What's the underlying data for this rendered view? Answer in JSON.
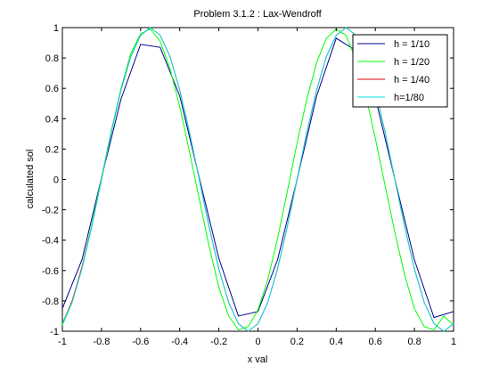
{
  "chart_data": {
    "type": "line",
    "title": "Problem 3.1.2 : Lax-Wendroff",
    "xlabel": "x val",
    "ylabel": "calculated sol",
    "xlim": [
      -1,
      1
    ],
    "ylim": [
      -1,
      1
    ],
    "xticks": [
      "-1",
      "-0.8",
      "-0.6",
      "-0.4",
      "-0.2",
      "0",
      "0.2",
      "0.4",
      "0.6",
      "0.8",
      "1"
    ],
    "yticks": [
      "-1",
      "-0.8",
      "-0.6",
      "-0.4",
      "-0.2",
      "0",
      "0.2",
      "0.4",
      "0.6",
      "0.8",
      "1"
    ],
    "grid": false,
    "legend_position": "top-right",
    "series": [
      {
        "name": "h = 1/10",
        "color": "#00008f",
        "x": [
          -1,
          -0.9,
          -0.8,
          -0.7,
          -0.6,
          -0.5,
          -0.4,
          -0.3,
          -0.2,
          -0.1,
          0,
          0.1,
          0.2,
          0.3,
          0.4,
          0.5,
          0.6,
          0.7,
          0.8,
          0.9,
          1
        ],
        "y": [
          -0.85,
          -0.53,
          0.01,
          0.53,
          0.89,
          0.87,
          0.55,
          0.01,
          -0.52,
          -0.9,
          -0.87,
          -0.53,
          0.0,
          0.55,
          0.93,
          0.85,
          0.54,
          0.0,
          -0.53,
          -0.91,
          -0.87
        ]
      },
      {
        "name": "h = 1/20",
        "color": "#00ff00",
        "x": [
          -1,
          -0.95,
          -0.9,
          -0.85,
          -0.8,
          -0.75,
          -0.7,
          -0.65,
          -0.6,
          -0.55,
          -0.5,
          -0.45,
          -0.4,
          -0.35,
          -0.3,
          -0.25,
          -0.2,
          -0.15,
          -0.1,
          -0.05,
          0,
          0.05,
          0.1,
          0.15,
          0.2,
          0.25,
          0.3,
          0.35,
          0.4,
          0.45,
          0.5,
          0.55,
          0.6,
          0.65,
          0.7,
          0.75,
          0.8,
          0.85,
          0.9,
          0.95,
          1
        ],
        "y": [
          -0.96,
          -0.81,
          -0.58,
          -0.3,
          0.01,
          0.32,
          0.6,
          0.83,
          0.96,
          0.99,
          0.91,
          0.73,
          0.48,
          0.18,
          -0.13,
          -0.44,
          -0.71,
          -0.9,
          -0.99,
          -0.97,
          -0.86,
          -0.66,
          -0.39,
          -0.08,
          0.24,
          0.53,
          0.77,
          0.93,
          0.99,
          0.95,
          0.79,
          0.56,
          0.27,
          -0.04,
          -0.35,
          -0.63,
          -0.85,
          -0.97,
          -0.99,
          -0.9,
          -0.96
        ]
      },
      {
        "name": "h = 1/40",
        "color": "#e00000",
        "x": [
          -1,
          -0.95,
          -0.9,
          -0.85,
          -0.8,
          -0.75,
          -0.7,
          -0.65,
          -0.6,
          -0.55,
          -0.5,
          -0.45,
          -0.4,
          -0.35,
          -0.3,
          -0.25,
          -0.2,
          -0.15,
          -0.1,
          -0.05,
          0,
          0.05,
          0.1,
          0.15,
          0.2,
          0.25,
          0.3,
          0.35,
          0.4,
          0.45,
          0.5,
          0.55,
          0.6,
          0.65,
          0.7,
          0.75,
          0.8,
          0.85,
          0.9,
          0.95,
          1
        ],
        "y": [
          -0.95,
          -0.8,
          -0.58,
          -0.31,
          0.0,
          0.31,
          0.59,
          0.81,
          0.95,
          1.0,
          0.95,
          0.81,
          0.59,
          0.31,
          0.0,
          -0.31,
          -0.59,
          -0.81,
          -0.95,
          -1.0,
          -0.95,
          -0.81,
          -0.59,
          -0.31,
          0.0,
          0.31,
          0.59,
          0.81,
          0.95,
          1.0,
          0.95,
          0.81,
          0.59,
          0.31,
          0.0,
          -0.31,
          -0.59,
          -0.81,
          -0.95,
          -1.0,
          -0.95
        ]
      },
      {
        "name": "h=1/80",
        "color": "#00e0e0",
        "x": [
          -1,
          -0.95,
          -0.9,
          -0.85,
          -0.8,
          -0.75,
          -0.7,
          -0.65,
          -0.6,
          -0.55,
          -0.5,
          -0.45,
          -0.4,
          -0.35,
          -0.3,
          -0.25,
          -0.2,
          -0.15,
          -0.1,
          -0.05,
          0,
          0.05,
          0.1,
          0.15,
          0.2,
          0.25,
          0.3,
          0.35,
          0.4,
          0.45,
          0.5,
          0.55,
          0.6,
          0.65,
          0.7,
          0.75,
          0.8,
          0.85,
          0.9,
          0.95,
          1
        ],
        "y": [
          -0.95,
          -0.81,
          -0.59,
          -0.31,
          0.0,
          0.31,
          0.59,
          0.81,
          0.95,
          1.0,
          0.95,
          0.81,
          0.59,
          0.31,
          0.0,
          -0.31,
          -0.59,
          -0.81,
          -0.95,
          -1.0,
          -0.95,
          -0.81,
          -0.59,
          -0.31,
          0.0,
          0.31,
          0.59,
          0.81,
          0.95,
          1.0,
          0.95,
          0.81,
          0.59,
          0.31,
          0.0,
          -0.31,
          -0.59,
          -0.81,
          -0.95,
          -1.0,
          -0.95
        ]
      }
    ]
  }
}
